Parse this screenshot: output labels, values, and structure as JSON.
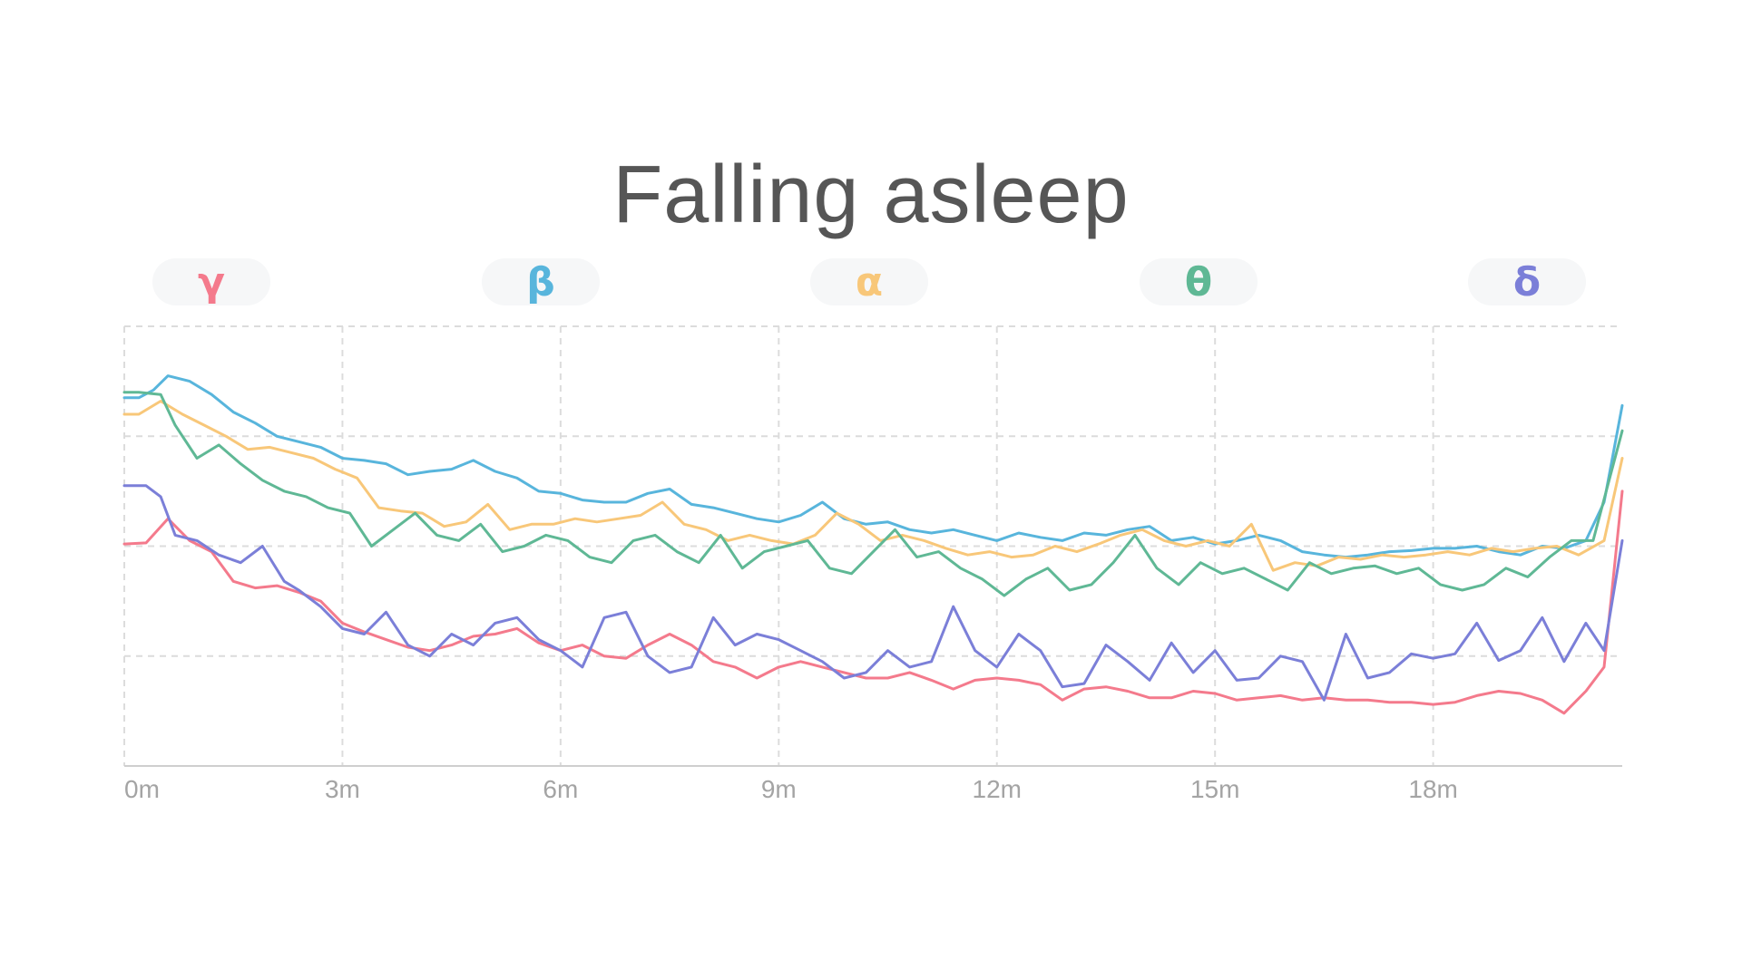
{
  "chart_data": {
    "type": "line",
    "title": "Falling asleep",
    "xlabel": "",
    "ylabel": "",
    "x_unit": "minutes",
    "xlim": [
      0,
      20.6
    ],
    "ylim": [
      0,
      4
    ],
    "x_ticks": [
      {
        "value": 0,
        "label": "0m"
      },
      {
        "value": 3,
        "label": "3m"
      },
      {
        "value": 6,
        "label": "6m"
      },
      {
        "value": 9,
        "label": "9m"
      },
      {
        "value": 12,
        "label": "12m"
      },
      {
        "value": 15,
        "label": "15m"
      },
      {
        "value": 18,
        "label": "18m"
      }
    ],
    "y_gridlines": [
      1,
      2,
      3,
      4
    ],
    "x_gridlines": [
      0,
      3,
      6,
      9,
      12,
      15,
      18
    ],
    "grid": true,
    "legend_position": "top",
    "series": [
      {
        "name": "γ",
        "color": "#f47a8c",
        "x": [
          0,
          0.3,
          0.6,
          0.9,
          1.2,
          1.5,
          1.8,
          2.1,
          2.4,
          2.7,
          3.0,
          3.3,
          3.6,
          3.9,
          4.2,
          4.5,
          4.8,
          5.1,
          5.4,
          5.7,
          6.0,
          6.3,
          6.6,
          6.9,
          7.2,
          7.5,
          7.8,
          8.1,
          8.4,
          8.7,
          9.0,
          9.3,
          9.6,
          9.9,
          10.2,
          10.5,
          10.8,
          11.1,
          11.4,
          11.7,
          12.0,
          12.3,
          12.6,
          12.9,
          13.2,
          13.5,
          13.8,
          14.1,
          14.4,
          14.7,
          15.0,
          15.3,
          15.6,
          15.9,
          16.2,
          16.5,
          16.8,
          17.1,
          17.4,
          17.7,
          18.0,
          18.3,
          18.6,
          18.9,
          19.2,
          19.5,
          19.8,
          20.1,
          20.35,
          20.6
        ],
        "values": [
          2.02,
          2.03,
          2.25,
          2.05,
          1.95,
          1.68,
          1.62,
          1.64,
          1.58,
          1.5,
          1.3,
          1.22,
          1.15,
          1.08,
          1.05,
          1.1,
          1.18,
          1.2,
          1.25,
          1.12,
          1.05,
          1.1,
          1.0,
          0.98,
          1.1,
          1.2,
          1.1,
          0.95,
          0.9,
          0.8,
          0.9,
          0.95,
          0.9,
          0.85,
          0.8,
          0.8,
          0.85,
          0.78,
          0.7,
          0.78,
          0.8,
          0.78,
          0.74,
          0.6,
          0.7,
          0.72,
          0.68,
          0.62,
          0.62,
          0.68,
          0.66,
          0.6,
          0.62,
          0.64,
          0.6,
          0.62,
          0.6,
          0.6,
          0.58,
          0.58,
          0.56,
          0.58,
          0.64,
          0.68,
          0.66,
          0.6,
          0.48,
          0.68,
          0.9,
          2.5
        ]
      },
      {
        "name": "β",
        "color": "#58b5dc",
        "x": [
          0,
          0.2,
          0.4,
          0.6,
          0.9,
          1.2,
          1.5,
          1.8,
          2.1,
          2.4,
          2.7,
          3.0,
          3.3,
          3.6,
          3.9,
          4.2,
          4.5,
          4.8,
          5.1,
          5.4,
          5.7,
          6.0,
          6.3,
          6.6,
          6.9,
          7.2,
          7.5,
          7.8,
          8.1,
          8.4,
          8.7,
          9.0,
          9.3,
          9.6,
          9.9,
          10.2,
          10.5,
          10.8,
          11.1,
          11.4,
          11.7,
          12.0,
          12.3,
          12.6,
          12.9,
          13.2,
          13.5,
          13.8,
          14.1,
          14.4,
          14.7,
          15.0,
          15.3,
          15.6,
          15.9,
          16.2,
          16.5,
          16.8,
          17.1,
          17.4,
          17.7,
          18.0,
          18.3,
          18.6,
          18.9,
          19.2,
          19.5,
          19.8,
          20.1,
          20.35,
          20.6
        ],
        "values": [
          3.35,
          3.35,
          3.42,
          3.55,
          3.5,
          3.38,
          3.22,
          3.12,
          3.0,
          2.95,
          2.9,
          2.8,
          2.78,
          2.75,
          2.65,
          2.68,
          2.7,
          2.78,
          2.68,
          2.62,
          2.5,
          2.48,
          2.42,
          2.4,
          2.4,
          2.48,
          2.52,
          2.38,
          2.35,
          2.3,
          2.25,
          2.22,
          2.28,
          2.4,
          2.25,
          2.2,
          2.22,
          2.15,
          2.12,
          2.15,
          2.1,
          2.05,
          2.12,
          2.08,
          2.05,
          2.12,
          2.1,
          2.15,
          2.18,
          2.05,
          2.08,
          2.02,
          2.05,
          2.1,
          2.05,
          1.95,
          1.92,
          1.9,
          1.92,
          1.95,
          1.96,
          1.98,
          1.98,
          2.0,
          1.95,
          1.92,
          2.0,
          1.98,
          2.05,
          2.4,
          3.28
        ]
      },
      {
        "name": "α",
        "color": "#f8c779",
        "x": [
          0,
          0.2,
          0.5,
          0.8,
          1.1,
          1.4,
          1.7,
          2.0,
          2.3,
          2.6,
          2.9,
          3.2,
          3.5,
          3.8,
          4.1,
          4.4,
          4.7,
          5.0,
          5.3,
          5.6,
          5.9,
          6.2,
          6.5,
          6.8,
          7.1,
          7.4,
          7.7,
          8.0,
          8.3,
          8.6,
          8.9,
          9.2,
          9.5,
          9.8,
          10.1,
          10.4,
          10.7,
          11.0,
          11.3,
          11.6,
          11.9,
          12.2,
          12.5,
          12.8,
          13.1,
          13.4,
          13.7,
          14.0,
          14.3,
          14.6,
          14.9,
          15.2,
          15.5,
          15.8,
          16.1,
          16.4,
          16.7,
          17.0,
          17.3,
          17.6,
          17.9,
          18.2,
          18.5,
          18.8,
          19.1,
          19.4,
          19.7,
          20.0,
          20.35,
          20.6
        ],
        "values": [
          3.2,
          3.2,
          3.32,
          3.2,
          3.1,
          3.0,
          2.88,
          2.9,
          2.85,
          2.8,
          2.7,
          2.62,
          2.35,
          2.32,
          2.3,
          2.18,
          2.22,
          2.38,
          2.15,
          2.2,
          2.2,
          2.25,
          2.22,
          2.25,
          2.28,
          2.4,
          2.2,
          2.15,
          2.05,
          2.1,
          2.05,
          2.02,
          2.1,
          2.3,
          2.2,
          2.05,
          2.1,
          2.05,
          1.98,
          1.92,
          1.95,
          1.9,
          1.92,
          2.0,
          1.95,
          2.02,
          2.1,
          2.15,
          2.05,
          2.0,
          2.05,
          2.0,
          2.2,
          1.78,
          1.85,
          1.82,
          1.9,
          1.88,
          1.92,
          1.9,
          1.92,
          1.95,
          1.92,
          1.98,
          1.95,
          1.98,
          2.0,
          1.92,
          2.05,
          2.8
        ]
      },
      {
        "name": "θ",
        "color": "#5fb895",
        "x": [
          0,
          0.2,
          0.5,
          0.7,
          1.0,
          1.3,
          1.6,
          1.9,
          2.2,
          2.5,
          2.8,
          3.1,
          3.4,
          3.7,
          4.0,
          4.3,
          4.6,
          4.9,
          5.2,
          5.5,
          5.8,
          6.1,
          6.4,
          6.7,
          7.0,
          7.3,
          7.6,
          7.9,
          8.2,
          8.5,
          8.8,
          9.1,
          9.4,
          9.7,
          10.0,
          10.3,
          10.6,
          10.9,
          11.2,
          11.5,
          11.8,
          12.1,
          12.4,
          12.7,
          13.0,
          13.3,
          13.6,
          13.9,
          14.2,
          14.5,
          14.8,
          15.1,
          15.4,
          15.7,
          16.0,
          16.3,
          16.6,
          16.9,
          17.2,
          17.5,
          17.8,
          18.1,
          18.4,
          18.7,
          19.0,
          19.3,
          19.6,
          19.9,
          20.2,
          20.6
        ],
        "values": [
          3.4,
          3.4,
          3.38,
          3.1,
          2.8,
          2.92,
          2.75,
          2.6,
          2.5,
          2.45,
          2.35,
          2.3,
          2.0,
          2.15,
          2.3,
          2.1,
          2.05,
          2.2,
          1.95,
          2.0,
          2.1,
          2.05,
          1.9,
          1.85,
          2.05,
          2.1,
          1.95,
          1.85,
          2.1,
          1.8,
          1.95,
          2.0,
          2.05,
          1.8,
          1.75,
          1.95,
          2.15,
          1.9,
          1.95,
          1.8,
          1.7,
          1.55,
          1.7,
          1.8,
          1.6,
          1.65,
          1.85,
          2.1,
          1.8,
          1.65,
          1.85,
          1.75,
          1.8,
          1.7,
          1.6,
          1.85,
          1.75,
          1.8,
          1.82,
          1.75,
          1.8,
          1.65,
          1.6,
          1.65,
          1.8,
          1.72,
          1.9,
          2.05,
          2.05,
          3.05
        ]
      },
      {
        "name": "δ",
        "color": "#7b7fd8",
        "x": [
          0,
          0.3,
          0.5,
          0.7,
          1.0,
          1.3,
          1.6,
          1.9,
          2.2,
          2.4,
          2.7,
          3.0,
          3.3,
          3.6,
          3.9,
          4.2,
          4.5,
          4.8,
          5.1,
          5.4,
          5.7,
          6.0,
          6.3,
          6.6,
          6.9,
          7.2,
          7.5,
          7.8,
          8.1,
          8.4,
          8.7,
          9.0,
          9.3,
          9.6,
          9.9,
          10.2,
          10.5,
          10.8,
          11.1,
          11.4,
          11.7,
          12.0,
          12.3,
          12.6,
          12.9,
          13.2,
          13.5,
          13.8,
          14.1,
          14.4,
          14.7,
          15.0,
          15.3,
          15.6,
          15.9,
          16.2,
          16.5,
          16.8,
          17.1,
          17.4,
          17.7,
          18.0,
          18.3,
          18.6,
          18.9,
          19.2,
          19.5,
          19.8,
          20.1,
          20.35,
          20.6
        ],
        "values": [
          2.55,
          2.55,
          2.45,
          2.1,
          2.05,
          1.92,
          1.85,
          2.0,
          1.68,
          1.6,
          1.45,
          1.25,
          1.2,
          1.4,
          1.1,
          1.0,
          1.2,
          1.1,
          1.3,
          1.35,
          1.15,
          1.05,
          0.9,
          1.35,
          1.4,
          1.0,
          0.85,
          0.9,
          1.35,
          1.1,
          1.2,
          1.15,
          1.05,
          0.95,
          0.8,
          0.85,
          1.05,
          0.9,
          0.95,
          1.45,
          1.05,
          0.9,
          1.2,
          1.05,
          0.72,
          0.75,
          1.1,
          0.95,
          0.78,
          1.12,
          0.85,
          1.05,
          0.78,
          0.8,
          1.0,
          0.95,
          0.6,
          1.2,
          0.8,
          0.85,
          1.02,
          0.98,
          1.02,
          1.3,
          0.96,
          1.05,
          1.35,
          0.95,
          1.3,
          1.05,
          2.05
        ]
      }
    ]
  }
}
